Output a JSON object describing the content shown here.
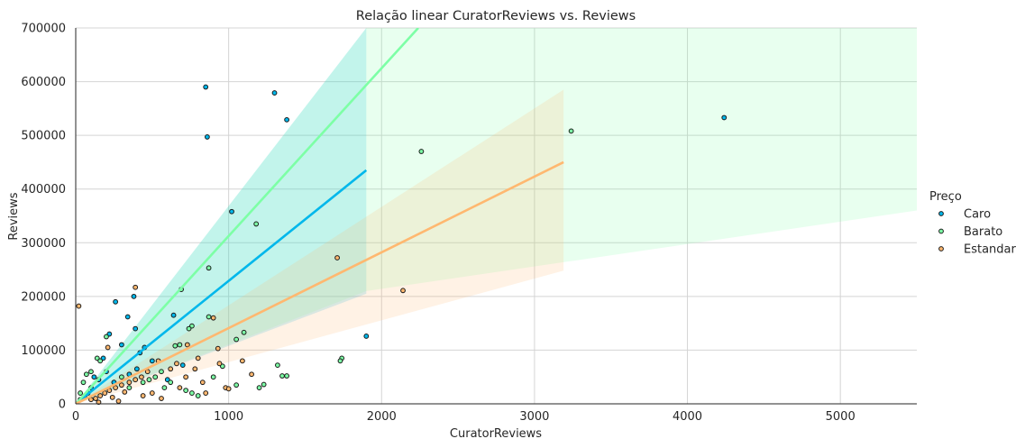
{
  "chart_data": {
    "type": "scatter",
    "title": "Relação linear CuratorReviews vs. Reviews",
    "xlabel": "CuratorReviews",
    "ylabel": "Reviews",
    "xlim": [
      0,
      5500
    ],
    "ylim": [
      0,
      700000
    ],
    "x_ticks": [
      "0",
      "1000",
      "2000",
      "3000",
      "4000",
      "5000"
    ],
    "y_ticks": [
      "0",
      "100000",
      "200000",
      "300000",
      "400000",
      "500000",
      "600000",
      "700000"
    ],
    "grid": true,
    "legend_title": "Preço",
    "legend_position": "right",
    "series": [
      {
        "name": "Caro",
        "color": "#00b7eb",
        "regression": {
          "x": [
            0,
            1900
          ],
          "y": [
            0,
            435000
          ]
        },
        "ci_band": {
          "x": [
            0,
            1900
          ],
          "lower": [
            0,
            205000
          ],
          "upper": [
            0,
            700000
          ]
        },
        "points": [
          [
            850,
            590000
          ],
          [
            860,
            497000
          ],
          [
            1300,
            579000
          ],
          [
            1380,
            529000
          ],
          [
            4240,
            533000
          ],
          [
            1020,
            358000
          ],
          [
            1900,
            126000
          ],
          [
            380,
            200000
          ],
          [
            260,
            190000
          ],
          [
            340,
            162000
          ],
          [
            390,
            140000
          ],
          [
            450,
            105000
          ],
          [
            420,
            95000
          ],
          [
            300,
            110000
          ],
          [
            640,
            165000
          ],
          [
            200,
            60000
          ],
          [
            150,
            45000
          ],
          [
            100,
            30000
          ],
          [
            60,
            15000
          ],
          [
            30,
            8000
          ],
          [
            250,
            40000
          ],
          [
            350,
            55000
          ],
          [
            500,
            80000
          ],
          [
            700,
            72000
          ],
          [
            220,
            130000
          ],
          [
            180,
            85000
          ],
          [
            120,
            50000
          ],
          [
            80,
            20000
          ],
          [
            400,
            65000
          ],
          [
            600,
            45000
          ]
        ]
      },
      {
        "name": "Barato",
        "color": "#7dffa6",
        "regression": {
          "x": [
            0,
            2240
          ],
          "y": [
            0,
            700000
          ]
        },
        "ci_band": {
          "x": [
            0,
            1900,
            5500
          ],
          "lower": [
            0,
            210000,
            360000
          ],
          "upper": [
            0,
            700000,
            700000
          ]
        },
        "points": [
          [
            3240,
            508000
          ],
          [
            2260,
            470000
          ],
          [
            1180,
            335000
          ],
          [
            870,
            253000
          ],
          [
            690,
            213000
          ],
          [
            870,
            162000
          ],
          [
            760,
            145000
          ],
          [
            740,
            140000
          ],
          [
            1100,
            133000
          ],
          [
            1050,
            120000
          ],
          [
            680,
            110000
          ],
          [
            650,
            108000
          ],
          [
            960,
            70000
          ],
          [
            1320,
            72000
          ],
          [
            1740,
            85000
          ],
          [
            1730,
            80000
          ],
          [
            1380,
            52000
          ],
          [
            1350,
            52000
          ],
          [
            1200,
            30000
          ],
          [
            1230,
            36000
          ],
          [
            1050,
            35000
          ],
          [
            800,
            15000
          ],
          [
            760,
            20000
          ],
          [
            720,
            25000
          ],
          [
            580,
            30000
          ],
          [
            560,
            60000
          ],
          [
            520,
            50000
          ],
          [
            480,
            45000
          ],
          [
            440,
            40000
          ],
          [
            100,
            60000
          ],
          [
            70,
            55000
          ],
          [
            50,
            40000
          ],
          [
            30,
            20000
          ],
          [
            140,
            85000
          ],
          [
            160,
            80000
          ],
          [
            200,
            125000
          ],
          [
            300,
            50000
          ],
          [
            620,
            40000
          ],
          [
            900,
            50000
          ],
          [
            350,
            30000
          ]
        ]
      },
      {
        "name": "Estandar",
        "color": "#ffb870",
        "regression": {
          "x": [
            0,
            3190
          ],
          "y": [
            0,
            450000
          ]
        },
        "ci_band": {
          "x": [
            0,
            3190
          ],
          "lower": [
            0,
            248000
          ],
          "upper": [
            0,
            585000
          ]
        },
        "points": [
          [
            20,
            182000
          ],
          [
            390,
            217000
          ],
          [
            900,
            160000
          ],
          [
            1710,
            272000
          ],
          [
            2140,
            211000
          ],
          [
            930,
            103000
          ],
          [
            730,
            110000
          ],
          [
            800,
            85000
          ],
          [
            660,
            75000
          ],
          [
            620,
            65000
          ],
          [
            540,
            80000
          ],
          [
            470,
            60000
          ],
          [
            430,
            50000
          ],
          [
            390,
            45000
          ],
          [
            350,
            40000
          ],
          [
            300,
            35000
          ],
          [
            260,
            30000
          ],
          [
            220,
            25000
          ],
          [
            190,
            20000
          ],
          [
            160,
            15000
          ],
          [
            130,
            10000
          ],
          [
            100,
            8000
          ],
          [
            210,
            105000
          ],
          [
            780,
            65000
          ],
          [
            1090,
            80000
          ],
          [
            1150,
            55000
          ],
          [
            830,
            40000
          ],
          [
            850,
            20000
          ],
          [
            980,
            30000
          ],
          [
            280,
            5000
          ],
          [
            440,
            15000
          ],
          [
            500,
            20000
          ],
          [
            560,
            10000
          ],
          [
            150,
            3000
          ],
          [
            240,
            12000
          ],
          [
            320,
            22000
          ],
          [
            680,
            30000
          ],
          [
            720,
            50000
          ],
          [
            940,
            75000
          ],
          [
            1000,
            28000
          ]
        ]
      }
    ]
  }
}
